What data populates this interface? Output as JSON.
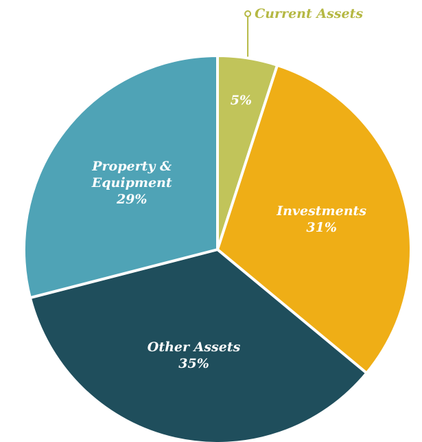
{
  "chart_data": {
    "type": "pie",
    "categories": [
      "Current Assets",
      "Investments",
      "Other Assets",
      "Property & Equipment"
    ],
    "values": [
      5,
      31,
      35,
      29
    ],
    "value_labels": [
      "5%",
      "31%",
      "35%",
      "29%"
    ],
    "colors": [
      "#c1c45a",
      "#efae16",
      "#1f4e5c",
      "#4fa3b6"
    ]
  }
}
